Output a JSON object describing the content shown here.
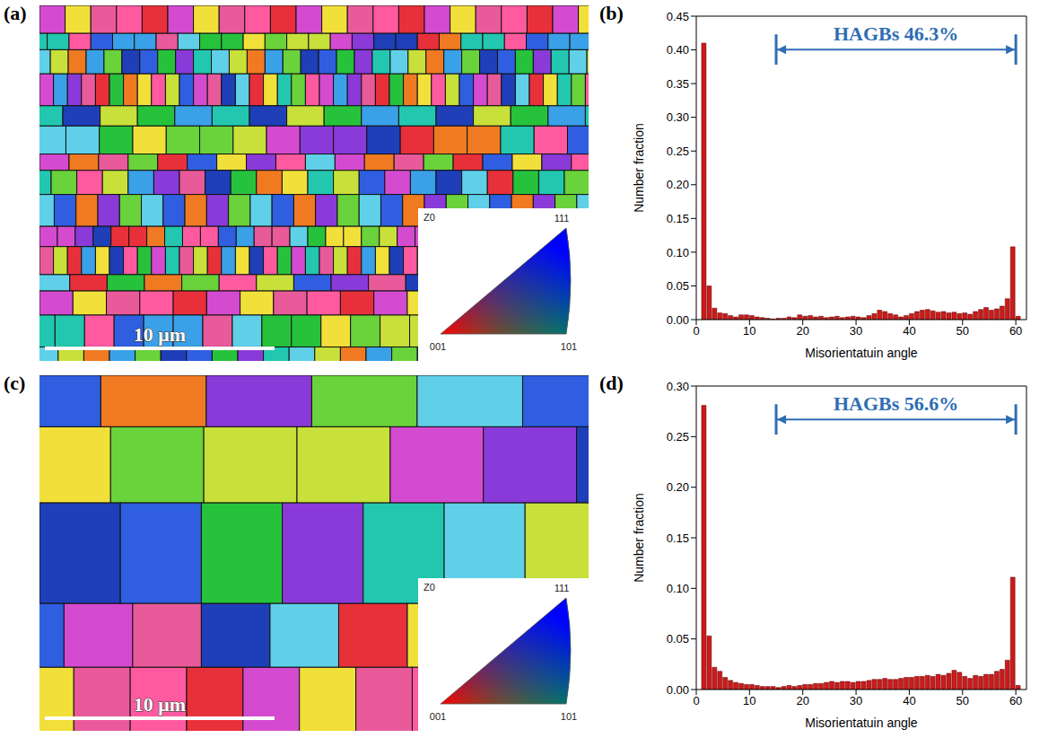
{
  "maps": [
    {
      "panel": "(a)",
      "scale_bar": "10 μm",
      "ipf_key": {
        "direction": "Z0",
        "labels": [
          "001",
          "111",
          "101"
        ]
      }
    },
    {
      "panel": "(c)",
      "scale_bar": "10 μm",
      "ipf_key": {
        "direction": "Z0",
        "labels": [
          "001",
          "111",
          "101"
        ]
      }
    }
  ],
  "chart_data": [
    {
      "panel": "(b)",
      "type": "histogram",
      "xlabel": "Misorientatuin angle",
      "ylabel": "Number fraction",
      "color": "#cc1a1a",
      "grid": false,
      "bins": [
        1,
        2,
        3,
        4,
        5,
        6,
        7,
        8,
        9,
        10,
        11,
        12,
        13,
        14,
        15,
        16,
        17,
        18,
        19,
        20,
        21,
        22,
        23,
        24,
        25,
        26,
        27,
        28,
        29,
        30,
        31,
        32,
        33,
        34,
        35,
        36,
        37,
        38,
        39,
        40,
        41,
        42,
        43,
        44,
        45,
        46,
        47,
        48,
        49,
        50,
        51,
        52,
        53,
        54,
        55,
        56,
        57,
        58,
        59,
        60,
        61
      ],
      "values": [
        0.41,
        0.05,
        0.017,
        0.01,
        0.009,
        0.006,
        0.004,
        0.007,
        0.007,
        0.006,
        0.004,
        0.003,
        0.002,
        0.001,
        0.002,
        0.002,
        0.004,
        0.003,
        0.007,
        0.005,
        0.006,
        0.004,
        0.005,
        0.003,
        0.004,
        0.005,
        0.003,
        0.004,
        0.005,
        0.004,
        0.003,
        0.006,
        0.009,
        0.014,
        0.012,
        0.009,
        0.007,
        0.004,
        0.006,
        0.009,
        0.012,
        0.014,
        0.015,
        0.013,
        0.011,
        0.012,
        0.01,
        0.011,
        0.009,
        0.01,
        0.008,
        0.012,
        0.015,
        0.018,
        0.014,
        0.016,
        0.02,
        0.031,
        0.108,
        0.005
      ],
      "xlim": [
        0,
        62
      ],
      "xticks": [
        0,
        10,
        20,
        30,
        40,
        50,
        60
      ],
      "ylim": [
        0,
        0.45
      ],
      "yticks": [
        {
          "value": 0,
          "label": "0.00"
        },
        {
          "value": 0.05,
          "label": "0.05"
        },
        {
          "value": 0.1,
          "label": "0.10"
        },
        {
          "value": 0.15,
          "label": "0.15"
        },
        {
          "value": 0.2,
          "label": "0.20"
        },
        {
          "value": 0.25,
          "label": "0.25"
        },
        {
          "value": 0.3,
          "label": "0.30"
        },
        {
          "value": 0.35,
          "label": "0.35"
        },
        {
          "value": 0.4,
          "label": "0.40"
        },
        {
          "value": 0.45,
          "label": "0.45"
        }
      ],
      "annotations": [
        {
          "text": "HAGBs 46.3%",
          "range": [
            15,
            60
          ]
        }
      ]
    },
    {
      "panel": "(d)",
      "type": "histogram",
      "xlabel": "Misorientatuin angle",
      "ylabel": "Number fraction",
      "color": "#cc1a1a",
      "grid": false,
      "bins": [
        1,
        2,
        3,
        4,
        5,
        6,
        7,
        8,
        9,
        10,
        11,
        12,
        13,
        14,
        15,
        16,
        17,
        18,
        19,
        20,
        21,
        22,
        23,
        24,
        25,
        26,
        27,
        28,
        29,
        30,
        31,
        32,
        33,
        34,
        35,
        36,
        37,
        38,
        39,
        40,
        41,
        42,
        43,
        44,
        45,
        46,
        47,
        48,
        49,
        50,
        51,
        52,
        53,
        54,
        55,
        56,
        57,
        58,
        59,
        60,
        61
      ],
      "values": [
        0.281,
        0.053,
        0.022,
        0.018,
        0.012,
        0.009,
        0.007,
        0.006,
        0.005,
        0.005,
        0.004,
        0.003,
        0.003,
        0.003,
        0.002,
        0.003,
        0.004,
        0.003,
        0.004,
        0.005,
        0.005,
        0.006,
        0.006,
        0.007,
        0.008,
        0.007,
        0.008,
        0.008,
        0.007,
        0.008,
        0.008,
        0.009,
        0.01,
        0.01,
        0.011,
        0.01,
        0.01,
        0.011,
        0.012,
        0.012,
        0.013,
        0.013,
        0.014,
        0.013,
        0.015,
        0.014,
        0.016,
        0.019,
        0.017,
        0.013,
        0.011,
        0.014,
        0.013,
        0.015,
        0.015,
        0.018,
        0.02,
        0.029,
        0.111,
        0.004
      ],
      "xlim": [
        0,
        62
      ],
      "xticks": [
        0,
        10,
        20,
        30,
        40,
        50,
        60
      ],
      "ylim": [
        0,
        0.3
      ],
      "yticks": [
        {
          "value": 0,
          "label": "0.00"
        },
        {
          "value": 0.05,
          "label": "0.05"
        },
        {
          "value": 0.1,
          "label": "0.10"
        },
        {
          "value": 0.15,
          "label": "0.15"
        },
        {
          "value": 0.2,
          "label": "0.20"
        },
        {
          "value": 0.25,
          "label": "0.25"
        },
        {
          "value": 0.3,
          "label": "0.30"
        }
      ],
      "annotations": [
        {
          "text": "HAGBs 56.6%",
          "range": [
            15,
            60
          ]
        }
      ]
    }
  ]
}
